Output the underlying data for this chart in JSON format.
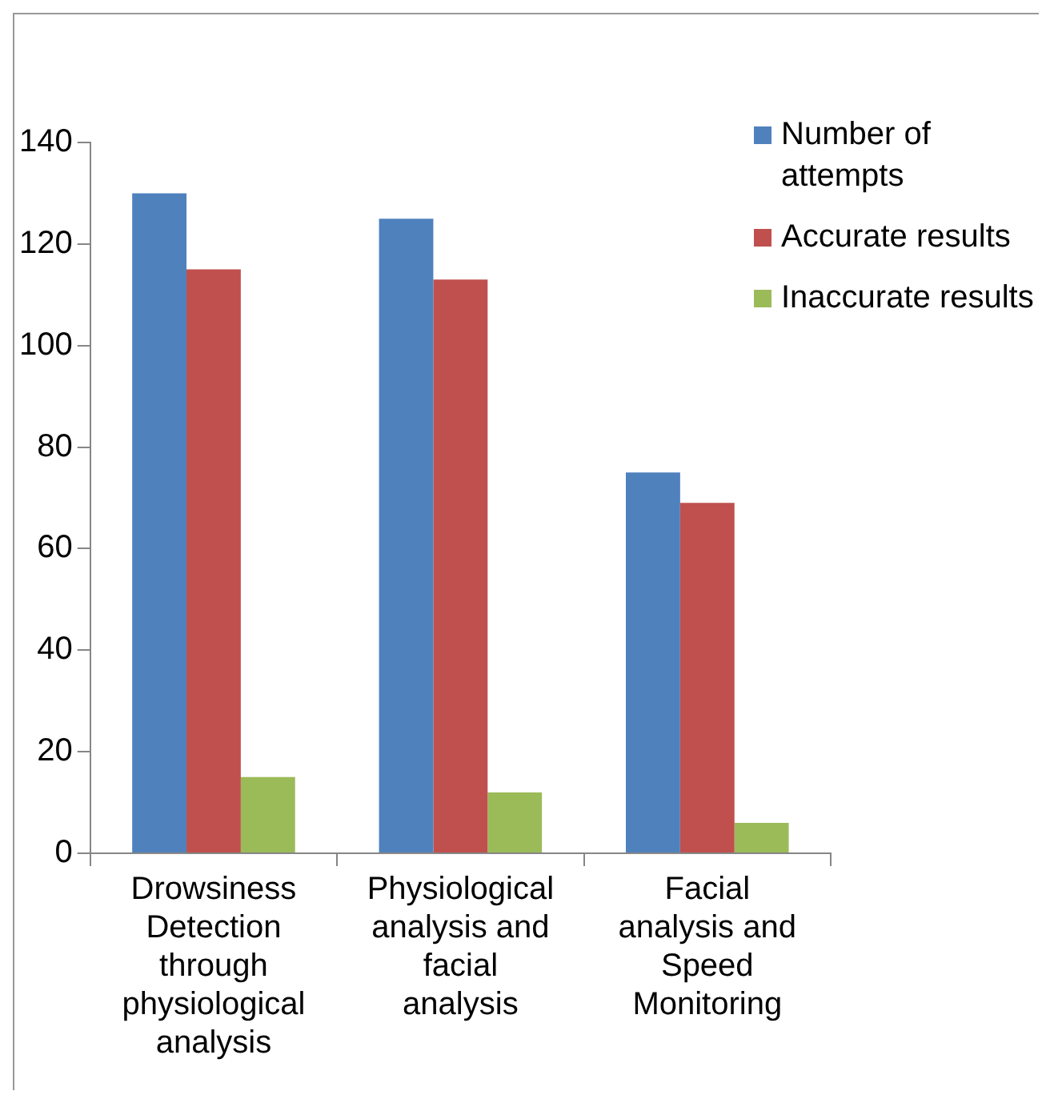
{
  "chart_data": {
    "type": "bar",
    "categories": [
      "Drowsiness Detection through physiological analysis",
      "Physiological analysis and facial analysis",
      "Facial analysis and Speed Monitoring"
    ],
    "series": [
      {
        "name": "Number of attempts",
        "color": "#4f81bd",
        "values": [
          130,
          125,
          75
        ]
      },
      {
        "name": "Accurate results",
        "color": "#c0504d",
        "values": [
          115,
          113,
          69
        ]
      },
      {
        "name": "Inaccurate results",
        "color": "#9bbb59",
        "values": [
          15,
          12,
          6
        ]
      }
    ],
    "ylim": [
      0,
      140
    ],
    "yticks": [
      0,
      20,
      40,
      60,
      80,
      100,
      120,
      140
    ],
    "grid": false,
    "legend": "right"
  }
}
